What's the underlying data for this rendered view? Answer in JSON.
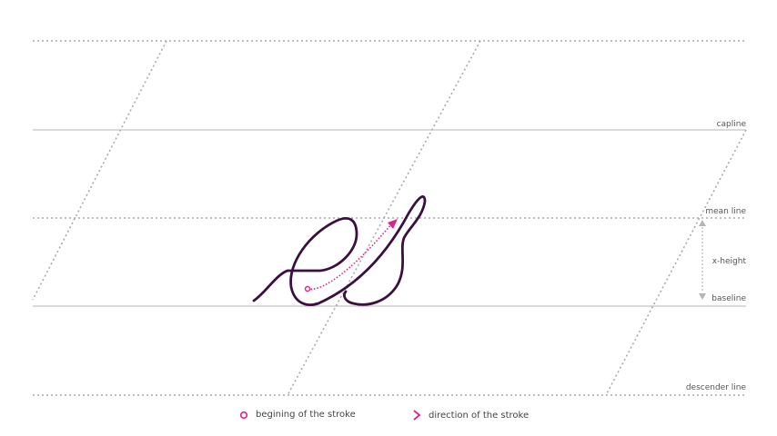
{
  "guides": {
    "capline": "capline",
    "mean_line": "mean line",
    "x_height": "x-height",
    "baseline": "baseline",
    "descender_line": "descender line"
  },
  "legend": {
    "start_label": "begining of the stroke",
    "direction_label": "direction of the stroke"
  },
  "colors": {
    "stroke": "#3b0f3f",
    "accent": "#e0218a",
    "guide_solid": "#b5b5b5",
    "guide_dotted": "#aaaaaa",
    "label": "#555555"
  }
}
